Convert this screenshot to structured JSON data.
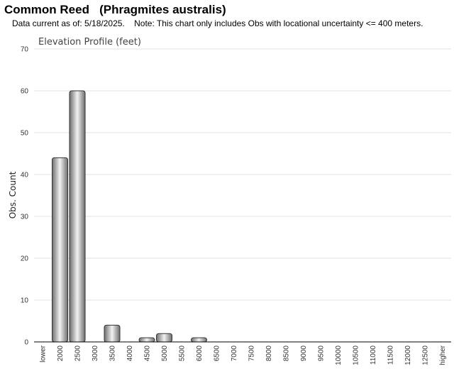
{
  "header": {
    "species": "Common Reed   (Phragmites australis)",
    "note": "Data current as of: 5/18/2025.    Note: This chart only includes Obs with locational uncertainty <= 400 meters."
  },
  "chart_data": {
    "type": "bar",
    "title": "Elevation Profile (feet)",
    "xlabel": "",
    "ylabel": "Obs. Count",
    "ylim": [
      0,
      70
    ],
    "yticks": [
      0,
      10,
      20,
      30,
      40,
      50,
      60,
      70
    ],
    "grid": true,
    "categories": [
      "lower",
      "2000",
      "2500",
      "3000",
      "3500",
      "4000",
      "4500",
      "5000",
      "5500",
      "6000",
      "6500",
      "7000",
      "7500",
      "8000",
      "8500",
      "9000",
      "9500",
      "10000",
      "10500",
      "11000",
      "11500",
      "12000",
      "12500",
      "higher"
    ],
    "values": [
      0,
      44,
      60,
      0,
      4,
      0,
      1,
      2,
      0,
      1,
      0,
      0,
      0,
      0,
      0,
      0,
      0,
      0,
      0,
      0,
      0,
      0,
      0,
      0
    ],
    "colors": {
      "bar_dark": "#6e6e6e",
      "bar_light": "#f2f2f2",
      "grid": "#e2e2e2",
      "axis": "#000000"
    }
  }
}
